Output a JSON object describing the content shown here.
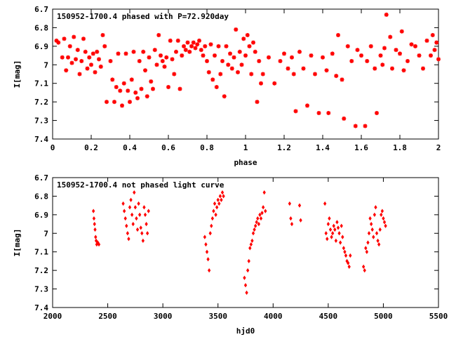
{
  "chart_data": [
    {
      "type": "scatter",
      "title": "150952-1700.4 phased with P=72.920day",
      "xlabel": "phase",
      "ylabel": "I[mag]",
      "xlim": [
        0,
        2
      ],
      "ylim": [
        6.7,
        7.4
      ],
      "y_inverted": true,
      "xticks": [
        "0",
        "0.2",
        "0.4",
        "0.6",
        "0.8",
        "1",
        "1.2",
        "1.4",
        "1.6",
        "1.8",
        "2"
      ],
      "yticks": [
        "6.7",
        "6.8",
        "6.9",
        "7",
        "7.1",
        "7.2",
        "7.3",
        "7.4"
      ],
      "marker": "star",
      "color": "#ff0000",
      "points": [
        [
          0.02,
          6.87
        ],
        [
          0.03,
          6.88
        ],
        [
          0.05,
          6.96
        ],
        [
          0.06,
          6.86
        ],
        [
          0.07,
          7.03
        ],
        [
          0.08,
          6.96
        ],
        [
          0.09,
          6.9
        ],
        [
          0.1,
          6.99
        ],
        [
          0.11,
          6.85
        ],
        [
          0.12,
          6.97
        ],
        [
          0.13,
          6.92
        ],
        [
          0.14,
          7.05
        ],
        [
          0.15,
          6.98
        ],
        [
          0.16,
          6.86
        ],
        [
          0.17,
          6.93
        ],
        [
          0.18,
          7.02
        ],
        [
          0.19,
          6.96
        ],
        [
          0.2,
          7.0
        ],
        [
          0.21,
          6.94
        ],
        [
          0.22,
          7.04
        ],
        [
          0.23,
          6.93
        ],
        [
          0.24,
          6.97
        ],
        [
          0.25,
          7.01
        ],
        [
          0.26,
          6.84
        ],
        [
          0.27,
          6.9
        ],
        [
          0.28,
          7.2
        ],
        [
          0.3,
          6.98
        ],
        [
          0.31,
          7.08
        ],
        [
          0.32,
          7.2
        ],
        [
          0.33,
          7.12
        ],
        [
          0.34,
          6.94
        ],
        [
          0.35,
          7.14
        ],
        [
          0.36,
          7.22
        ],
        [
          0.37,
          7.1
        ],
        [
          0.38,
          6.94
        ],
        [
          0.39,
          7.14
        ],
        [
          0.4,
          7.2
        ],
        [
          0.41,
          7.08
        ],
        [
          0.42,
          6.93
        ],
        [
          0.43,
          7.15
        ],
        [
          0.44,
          7.18
        ],
        [
          0.45,
          6.98
        ],
        [
          0.46,
          7.13
        ],
        [
          0.47,
          6.93
        ],
        [
          0.48,
          7.03
        ],
        [
          0.49,
          7.17
        ],
        [
          0.5,
          6.96
        ],
        [
          0.51,
          7.09
        ],
        [
          0.52,
          7.13
        ],
        [
          0.53,
          6.92
        ],
        [
          0.54,
          7.0
        ],
        [
          0.55,
          6.84
        ],
        [
          0.56,
          6.95
        ],
        [
          0.57,
          6.98
        ],
        [
          0.58,
          7.01
        ],
        [
          0.59,
          6.96
        ],
        [
          0.6,
          7.12
        ],
        [
          0.61,
          6.87
        ],
        [
          0.62,
          6.97
        ],
        [
          0.63,
          7.05
        ],
        [
          0.64,
          6.93
        ],
        [
          0.65,
          6.87
        ],
        [
          0.66,
          7.13
        ],
        [
          0.67,
          6.95
        ],
        [
          0.68,
          6.9
        ],
        [
          0.69,
          6.92
        ],
        [
          0.7,
          6.88
        ],
        [
          0.71,
          6.93
        ],
        [
          0.72,
          6.9
        ],
        [
          0.73,
          6.88
        ],
        [
          0.74,
          6.91
        ],
        [
          0.75,
          6.89
        ],
        [
          0.76,
          6.87
        ],
        [
          0.77,
          6.92
        ],
        [
          0.78,
          6.95
        ],
        [
          0.79,
          6.9
        ],
        [
          0.8,
          6.98
        ],
        [
          0.81,
          7.04
        ],
        [
          0.82,
          6.89
        ],
        [
          0.83,
          7.08
        ],
        [
          0.84,
          6.95
        ],
        [
          0.85,
          7.12
        ],
        [
          0.86,
          6.9
        ],
        [
          0.87,
          7.05
        ],
        [
          0.88,
          6.98
        ],
        [
          0.89,
          7.17
        ],
        [
          0.9,
          6.9
        ],
        [
          0.91,
          7.0
        ],
        [
          0.92,
          6.94
        ],
        [
          0.93,
          7.02
        ],
        [
          0.94,
          6.96
        ],
        [
          0.95,
          6.81
        ],
        [
          0.96,
          7.04
        ],
        [
          0.97,
          6.93
        ],
        [
          0.98,
          7.0
        ],
        [
          0.99,
          6.86
        ],
        [
          1.0,
          6.95
        ],
        [
          1.01,
          6.84
        ],
        [
          1.02,
          6.9
        ],
        [
          1.03,
          7.05
        ],
        [
          1.04,
          6.88
        ],
        [
          1.05,
          6.93
        ],
        [
          1.06,
          7.2
        ],
        [
          1.07,
          6.98
        ],
        [
          1.08,
          7.1
        ],
        [
          1.09,
          7.05
        ],
        [
          1.12,
          6.96
        ],
        [
          1.15,
          7.1
        ],
        [
          1.18,
          6.98
        ],
        [
          1.2,
          6.94
        ],
        [
          1.22,
          7.02
        ],
        [
          1.24,
          6.96
        ],
        [
          1.25,
          7.05
        ],
        [
          1.26,
          7.25
        ],
        [
          1.28,
          6.93
        ],
        [
          1.3,
          7.02
        ],
        [
          1.32,
          7.22
        ],
        [
          1.34,
          6.95
        ],
        [
          1.36,
          7.05
        ],
        [
          1.38,
          7.26
        ],
        [
          1.4,
          6.96
        ],
        [
          1.42,
          7.03
        ],
        [
          1.43,
          7.26
        ],
        [
          1.45,
          6.94
        ],
        [
          1.47,
          7.06
        ],
        [
          1.48,
          6.84
        ],
        [
          1.5,
          7.08
        ],
        [
          1.51,
          7.29
        ],
        [
          1.53,
          6.9
        ],
        [
          1.55,
          6.98
        ],
        [
          1.57,
          7.33
        ],
        [
          1.58,
          6.92
        ],
        [
          1.6,
          6.95
        ],
        [
          1.62,
          7.33
        ],
        [
          1.63,
          6.98
        ],
        [
          1.65,
          6.9
        ],
        [
          1.67,
          7.02
        ],
        [
          1.68,
          7.26
        ],
        [
          1.7,
          6.95
        ],
        [
          1.71,
          7.0
        ],
        [
          1.72,
          6.91
        ],
        [
          1.73,
          6.73
        ],
        [
          1.75,
          6.85
        ],
        [
          1.76,
          7.02
        ],
        [
          1.78,
          6.92
        ],
        [
          1.8,
          6.94
        ],
        [
          1.81,
          6.82
        ],
        [
          1.82,
          7.03
        ],
        [
          1.84,
          6.98
        ],
        [
          1.86,
          6.89
        ],
        [
          1.88,
          6.9
        ],
        [
          1.9,
          6.95
        ],
        [
          1.92,
          7.02
        ],
        [
          1.94,
          6.87
        ],
        [
          1.96,
          6.95
        ],
        [
          1.97,
          6.84
        ],
        [
          1.98,
          6.92
        ],
        [
          1.99,
          6.88
        ],
        [
          2.0,
          6.97
        ]
      ]
    },
    {
      "type": "scatter",
      "title": "150952-1700.4 not phased light curve",
      "xlabel": "hjd0",
      "ylabel": "I[mag]",
      "xlim": [
        2000,
        5500
      ],
      "ylim": [
        6.7,
        7.4
      ],
      "y_inverted": true,
      "xticks": [
        "2000",
        "2500",
        "3000",
        "3500",
        "4000",
        "4500",
        "5000",
        "5500"
      ],
      "yticks": [
        "6.7",
        "6.8",
        "6.9",
        "7",
        "7.1",
        "7.2",
        "7.3",
        "7.4"
      ],
      "marker": "diamond",
      "color": "#ff0000",
      "points": [
        [
          2370,
          6.88
        ],
        [
          2375,
          6.92
        ],
        [
          2380,
          6.95
        ],
        [
          2385,
          6.98
        ],
        [
          2390,
          7.02
        ],
        [
          2395,
          7.04
        ],
        [
          2400,
          7.06
        ],
        [
          2410,
          7.05
        ],
        [
          2420,
          7.06
        ],
        [
          2640,
          6.84
        ],
        [
          2650,
          6.88
        ],
        [
          2660,
          6.92
        ],
        [
          2670,
          6.96
        ],
        [
          2680,
          7.0
        ],
        [
          2690,
          7.03
        ],
        [
          2700,
          6.86
        ],
        [
          2710,
          6.82
        ],
        [
          2720,
          6.9
        ],
        [
          2730,
          6.95
        ],
        [
          2740,
          6.78
        ],
        [
          2750,
          6.86
        ],
        [
          2760,
          6.92
        ],
        [
          2770,
          6.98
        ],
        [
          2780,
          6.84
        ],
        [
          2790,
          6.9
        ],
        [
          2800,
          6.97
        ],
        [
          2810,
          7.0
        ],
        [
          2820,
          7.04
        ],
        [
          2830,
          6.86
        ],
        [
          2840,
          6.9
        ],
        [
          2850,
          6.95
        ],
        [
          2860,
          7.0
        ],
        [
          2870,
          6.88
        ],
        [
          3380,
          7.02
        ],
        [
          3390,
          7.06
        ],
        [
          3400,
          7.1
        ],
        [
          3410,
          7.14
        ],
        [
          3420,
          7.2
        ],
        [
          3430,
          7.0
        ],
        [
          3440,
          6.96
        ],
        [
          3450,
          6.92
        ],
        [
          3460,
          6.88
        ],
        [
          3470,
          6.84
        ],
        [
          3480,
          6.9
        ],
        [
          3490,
          6.86
        ],
        [
          3500,
          6.82
        ],
        [
          3510,
          6.84
        ],
        [
          3520,
          6.8
        ],
        [
          3530,
          6.82
        ],
        [
          3540,
          6.78
        ],
        [
          3550,
          6.8
        ],
        [
          3740,
          7.24
        ],
        [
          3750,
          7.28
        ],
        [
          3760,
          7.32
        ],
        [
          3770,
          7.2
        ],
        [
          3780,
          7.15
        ],
        [
          3790,
          7.08
        ],
        [
          3800,
          7.06
        ],
        [
          3810,
          7.04
        ],
        [
          3820,
          7.0
        ],
        [
          3830,
          6.98
        ],
        [
          3840,
          6.96
        ],
        [
          3850,
          6.94
        ],
        [
          3860,
          6.92
        ],
        [
          3870,
          6.95
        ],
        [
          3880,
          6.9
        ],
        [
          3890,
          6.92
        ],
        [
          3900,
          6.89
        ],
        [
          3910,
          6.86
        ],
        [
          3920,
          6.78
        ],
        [
          3930,
          6.88
        ],
        [
          4150,
          6.84
        ],
        [
          4160,
          6.92
        ],
        [
          4170,
          6.95
        ],
        [
          4240,
          6.85
        ],
        [
          4250,
          6.93
        ],
        [
          4470,
          6.84
        ],
        [
          4480,
          7.0
        ],
        [
          4490,
          7.03
        ],
        [
          4500,
          6.95
        ],
        [
          4510,
          6.92
        ],
        [
          4520,
          6.98
        ],
        [
          4530,
          7.02
        ],
        [
          4540,
          7.0
        ],
        [
          4550,
          6.96
        ],
        [
          4560,
          6.98
        ],
        [
          4570,
          7.04
        ],
        [
          4580,
          6.94
        ],
        [
          4590,
          6.97
        ],
        [
          4600,
          7.0
        ],
        [
          4610,
          7.05
        ],
        [
          4620,
          6.96
        ],
        [
          4630,
          7.02
        ],
        [
          4640,
          7.08
        ],
        [
          4650,
          7.1
        ],
        [
          4660,
          7.12
        ],
        [
          4670,
          7.15
        ],
        [
          4680,
          7.16
        ],
        [
          4690,
          7.18
        ],
        [
          4700,
          7.12
        ],
        [
          4820,
          7.18
        ],
        [
          4830,
          7.2
        ],
        [
          4840,
          7.08
        ],
        [
          4850,
          7.1
        ],
        [
          4860,
          7.05
        ],
        [
          4870,
          7.0
        ],
        [
          4880,
          6.92
        ],
        [
          4890,
          6.95
        ],
        [
          4900,
          6.98
        ],
        [
          4910,
          7.02
        ],
        [
          4920,
          6.9
        ],
        [
          4930,
          6.86
        ],
        [
          4940,
          7.0
        ],
        [
          4950,
          7.04
        ],
        [
          4960,
          7.06
        ],
        [
          4970,
          6.98
        ],
        [
          4980,
          6.9
        ],
        [
          4990,
          6.88
        ],
        [
          5000,
          6.92
        ],
        [
          5010,
          6.94
        ],
        [
          5020,
          6.96
        ]
      ]
    }
  ]
}
